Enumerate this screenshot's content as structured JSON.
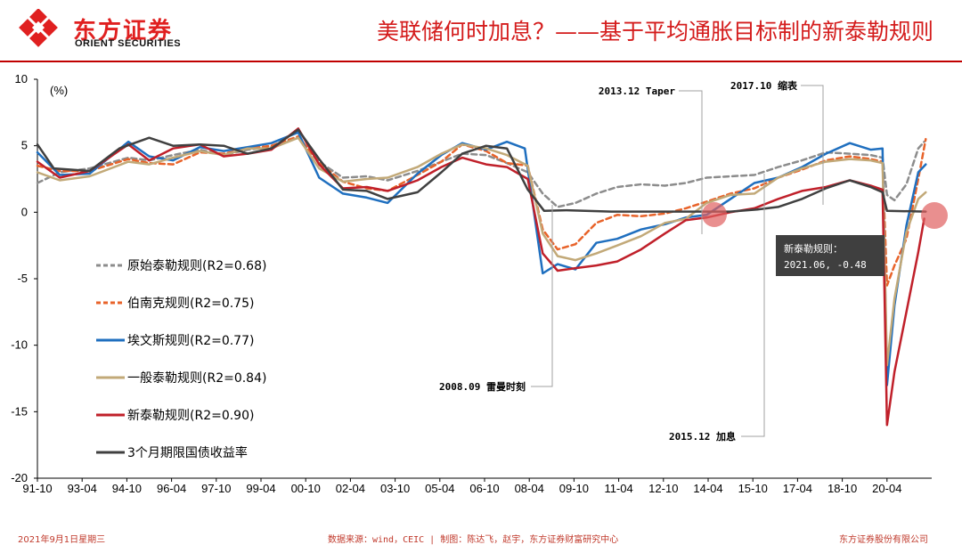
{
  "header": {
    "logo_cn": "东方证券",
    "logo_en": "ORIENT SECURITIES",
    "title": "美联储何时加息？——基于平均通胀目标制的新泰勒规则"
  },
  "footer": {
    "date": "2021年9月1日星期三",
    "source": "数据来源：wind，CEIC | 制图：陈达飞，赵宇，东方证券财富研究中心",
    "company": "东方证券股份有限公司"
  },
  "chart_data": {
    "type": "line",
    "unit_label": "(%)",
    "x_ticks": [
      "91-10",
      "93-04",
      "94-10",
      "96-04",
      "97-10",
      "99-04",
      "00-10",
      "02-04",
      "03-10",
      "05-04",
      "06-10",
      "08-04",
      "09-10",
      "11-04",
      "12-10",
      "14-04",
      "15-10",
      "17-04",
      "18-10",
      "20-04"
    ],
    "x_range": [
      1991.75,
      2021.75
    ],
    "ylim": [
      -20,
      10
    ],
    "y_ticks": [
      10,
      5,
      0,
      -5,
      -10,
      -15,
      -20
    ],
    "series": [
      {
        "name": "原始泰勒规则(R2=0.68)",
        "color": "#8c8c8c",
        "dash": "6,4",
        "width": 2.5,
        "points": [
          [
            1991.75,
            2.2
          ],
          [
            1992.5,
            3.0
          ],
          [
            1993.5,
            3.3
          ],
          [
            1994.8,
            4.1
          ],
          [
            1995.5,
            3.9
          ],
          [
            1996.3,
            4.3
          ],
          [
            1997.2,
            4.7
          ],
          [
            1998.0,
            4.3
          ],
          [
            1998.8,
            4.7
          ],
          [
            1999.6,
            4.9
          ],
          [
            2000.5,
            5.6
          ],
          [
            2001.2,
            3.8
          ],
          [
            2002.0,
            2.6
          ],
          [
            2002.8,
            2.7
          ],
          [
            2003.5,
            2.4
          ],
          [
            2004.5,
            3.1
          ],
          [
            2005.3,
            3.8
          ],
          [
            2006.0,
            4.4
          ],
          [
            2006.8,
            4.3
          ],
          [
            2007.5,
            3.7
          ],
          [
            2008.2,
            3.0
          ],
          [
            2008.7,
            1.4
          ],
          [
            2009.2,
            0.4
          ],
          [
            2009.8,
            0.7
          ],
          [
            2010.5,
            1.4
          ],
          [
            2011.2,
            1.9
          ],
          [
            2012.0,
            2.1
          ],
          [
            2012.8,
            2.0
          ],
          [
            2013.5,
            2.2
          ],
          [
            2014.2,
            2.6
          ],
          [
            2015.0,
            2.7
          ],
          [
            2015.8,
            2.8
          ],
          [
            2016.6,
            3.4
          ],
          [
            2017.4,
            3.9
          ],
          [
            2018.2,
            4.5
          ],
          [
            2019.0,
            4.4
          ],
          [
            2019.7,
            4.3
          ],
          [
            2020.1,
            4.1
          ],
          [
            2020.25,
            1.3
          ],
          [
            2020.5,
            0.9
          ],
          [
            2020.9,
            2.1
          ],
          [
            2021.3,
            4.8
          ],
          [
            2021.5,
            5.3
          ]
        ]
      },
      {
        "name": "伯南克规则(R2=0.75)",
        "color": "#e8632a",
        "dash": "6,4",
        "width": 2.5,
        "points": [
          [
            1991.75,
            3.5
          ],
          [
            1992.5,
            3.1
          ],
          [
            1993.5,
            3.1
          ],
          [
            1994.8,
            4.0
          ],
          [
            1995.5,
            3.7
          ],
          [
            1996.3,
            3.6
          ],
          [
            1997.2,
            4.5
          ],
          [
            1998.0,
            4.4
          ],
          [
            1998.8,
            4.8
          ],
          [
            1999.6,
            5.0
          ],
          [
            2000.5,
            5.7
          ],
          [
            2001.2,
            3.7
          ],
          [
            2002.0,
            2.3
          ],
          [
            2002.8,
            1.8
          ],
          [
            2003.5,
            1.6
          ],
          [
            2004.5,
            2.8
          ],
          [
            2005.3,
            3.8
          ],
          [
            2006.0,
            5.1
          ],
          [
            2006.8,
            4.6
          ],
          [
            2007.5,
            3.7
          ],
          [
            2008.2,
            3.5
          ],
          [
            2008.7,
            -1.3
          ],
          [
            2009.2,
            -2.8
          ],
          [
            2009.8,
            -2.4
          ],
          [
            2010.5,
            -0.8
          ],
          [
            2011.2,
            -0.2
          ],
          [
            2012.0,
            -0.3
          ],
          [
            2012.8,
            -0.1
          ],
          [
            2013.5,
            0.3
          ],
          [
            2014.2,
            0.8
          ],
          [
            2015.0,
            1.4
          ],
          [
            2015.8,
            1.8
          ],
          [
            2016.6,
            2.6
          ],
          [
            2017.4,
            3.2
          ],
          [
            2018.2,
            3.9
          ],
          [
            2019.0,
            4.2
          ],
          [
            2019.7,
            4.0
          ],
          [
            2020.1,
            3.8
          ],
          [
            2020.25,
            -5.5
          ],
          [
            2020.5,
            -4.0
          ],
          [
            2020.9,
            -2.0
          ],
          [
            2021.3,
            2.5
          ],
          [
            2021.55,
            5.5
          ]
        ]
      },
      {
        "name": "埃文斯规则(R2=0.77)",
        "color": "#1f6fbf",
        "dash": "",
        "width": 2.5,
        "points": [
          [
            1991.75,
            4.5
          ],
          [
            1992.5,
            2.8
          ],
          [
            1993.5,
            2.9
          ],
          [
            1994.8,
            5.3
          ],
          [
            1995.5,
            4.2
          ],
          [
            1996.3,
            3.9
          ],
          [
            1997.2,
            4.9
          ],
          [
            1998.0,
            4.6
          ],
          [
            1998.8,
            4.9
          ],
          [
            1999.6,
            5.2
          ],
          [
            2000.5,
            6.0
          ],
          [
            2001.2,
            2.6
          ],
          [
            2002.0,
            1.4
          ],
          [
            2002.8,
            1.1
          ],
          [
            2003.5,
            0.7
          ],
          [
            2004.5,
            2.9
          ],
          [
            2005.3,
            4.3
          ],
          [
            2006.0,
            5.2
          ],
          [
            2006.8,
            4.7
          ],
          [
            2007.5,
            5.3
          ],
          [
            2008.1,
            4.8
          ],
          [
            2008.7,
            -4.6
          ],
          [
            2009.2,
            -3.9
          ],
          [
            2009.8,
            -4.3
          ],
          [
            2010.5,
            -2.3
          ],
          [
            2011.2,
            -2.0
          ],
          [
            2012.0,
            -1.3
          ],
          [
            2012.8,
            -0.9
          ],
          [
            2013.5,
            -0.4
          ],
          [
            2014.2,
            -0.2
          ],
          [
            2015.0,
            1.0
          ],
          [
            2015.8,
            2.2
          ],
          [
            2016.6,
            2.6
          ],
          [
            2017.4,
            3.4
          ],
          [
            2018.2,
            4.4
          ],
          [
            2019.0,
            5.2
          ],
          [
            2019.7,
            4.7
          ],
          [
            2020.1,
            4.8
          ],
          [
            2020.25,
            -13.0
          ],
          [
            2020.5,
            -7.0
          ],
          [
            2020.9,
            -1.0
          ],
          [
            2021.3,
            3.0
          ],
          [
            2021.55,
            3.6
          ]
        ]
      },
      {
        "name": "一般泰勒规则(R2=0.84)",
        "color": "#c2a978",
        "dash": "",
        "width": 2.5,
        "points": [
          [
            1991.75,
            3.0
          ],
          [
            1992.5,
            2.4
          ],
          [
            1993.5,
            2.7
          ],
          [
            1994.8,
            3.8
          ],
          [
            1995.5,
            3.6
          ],
          [
            1996.3,
            4.1
          ],
          [
            1997.2,
            4.6
          ],
          [
            1998.0,
            4.3
          ],
          [
            1998.8,
            4.8
          ],
          [
            1999.6,
            4.8
          ],
          [
            2000.5,
            5.6
          ],
          [
            2001.2,
            3.3
          ],
          [
            2002.0,
            2.3
          ],
          [
            2002.8,
            2.5
          ],
          [
            2003.5,
            2.6
          ],
          [
            2004.5,
            3.4
          ],
          [
            2005.3,
            4.4
          ],
          [
            2006.0,
            5.1
          ],
          [
            2006.8,
            4.8
          ],
          [
            2007.5,
            4.3
          ],
          [
            2008.2,
            3.5
          ],
          [
            2008.7,
            -1.6
          ],
          [
            2009.2,
            -3.3
          ],
          [
            2009.8,
            -3.6
          ],
          [
            2010.5,
            -3.1
          ],
          [
            2011.2,
            -2.5
          ],
          [
            2012.0,
            -1.8
          ],
          [
            2012.8,
            -0.8
          ],
          [
            2013.5,
            -0.5
          ],
          [
            2014.2,
            0.7
          ],
          [
            2015.0,
            1.3
          ],
          [
            2015.8,
            1.4
          ],
          [
            2016.6,
            2.6
          ],
          [
            2017.4,
            3.3
          ],
          [
            2018.2,
            3.8
          ],
          [
            2019.0,
            4.0
          ],
          [
            2019.7,
            3.9
          ],
          [
            2020.1,
            3.7
          ],
          [
            2020.25,
            -11.5
          ],
          [
            2020.5,
            -6.5
          ],
          [
            2020.9,
            -1.5
          ],
          [
            2021.3,
            1.0
          ],
          [
            2021.55,
            1.5
          ]
        ]
      },
      {
        "name": "新泰勒规则(R2=0.90)",
        "color": "#c0202a",
        "dash": "",
        "width": 2.5,
        "points": [
          [
            1991.75,
            3.8
          ],
          [
            1992.5,
            2.6
          ],
          [
            1993.5,
            3.1
          ],
          [
            1994.8,
            5.1
          ],
          [
            1995.5,
            3.9
          ],
          [
            1996.3,
            4.8
          ],
          [
            1997.2,
            5.1
          ],
          [
            1998.0,
            4.2
          ],
          [
            1998.8,
            4.4
          ],
          [
            1999.6,
            4.7
          ],
          [
            2000.5,
            6.3
          ],
          [
            2001.2,
            3.6
          ],
          [
            2002.0,
            1.8
          ],
          [
            2002.8,
            1.9
          ],
          [
            2003.5,
            1.6
          ],
          [
            2004.5,
            2.4
          ],
          [
            2005.3,
            3.4
          ],
          [
            2006.0,
            4.1
          ],
          [
            2006.8,
            3.6
          ],
          [
            2007.5,
            3.4
          ],
          [
            2008.2,
            2.5
          ],
          [
            2008.7,
            -3.1
          ],
          [
            2009.2,
            -4.4
          ],
          [
            2009.8,
            -4.2
          ],
          [
            2010.5,
            -4.0
          ],
          [
            2011.2,
            -3.7
          ],
          [
            2012.0,
            -2.8
          ],
          [
            2012.8,
            -1.6
          ],
          [
            2013.5,
            -0.6
          ],
          [
            2014.2,
            -0.4
          ],
          [
            2015.0,
            0.0
          ],
          [
            2015.8,
            0.3
          ],
          [
            2016.6,
            1.0
          ],
          [
            2017.4,
            1.6
          ],
          [
            2018.2,
            1.9
          ],
          [
            2019.0,
            2.4
          ],
          [
            2019.7,
            2.0
          ],
          [
            2020.1,
            1.7
          ],
          [
            2020.25,
            -16.0
          ],
          [
            2020.5,
            -12.0
          ],
          [
            2020.9,
            -7.5
          ],
          [
            2021.3,
            -3.0
          ],
          [
            2021.5,
            -0.48
          ]
        ]
      },
      {
        "name": "3个月期限国债收益率",
        "color": "#404040",
        "dash": "",
        "width": 2.5,
        "points": [
          [
            1991.75,
            5.1
          ],
          [
            1992.3,
            3.3
          ],
          [
            1993.5,
            3.1
          ],
          [
            1994.5,
            4.8
          ],
          [
            1995.5,
            5.6
          ],
          [
            1996.3,
            5.0
          ],
          [
            1997.2,
            5.1
          ],
          [
            1998.0,
            5.0
          ],
          [
            1998.8,
            4.4
          ],
          [
            1999.6,
            4.8
          ],
          [
            2000.5,
            6.2
          ],
          [
            2001.2,
            4.0
          ],
          [
            2002.0,
            1.7
          ],
          [
            2002.8,
            1.6
          ],
          [
            2003.5,
            1.0
          ],
          [
            2004.5,
            1.5
          ],
          [
            2005.3,
            3.0
          ],
          [
            2006.0,
            4.4
          ],
          [
            2006.8,
            5.0
          ],
          [
            2007.5,
            4.8
          ],
          [
            2008.2,
            1.7
          ],
          [
            2008.75,
            0.1
          ],
          [
            2009.5,
            0.15
          ],
          [
            2011.0,
            0.05
          ],
          [
            2013.0,
            0.05
          ],
          [
            2015.0,
            0.05
          ],
          [
            2015.9,
            0.2
          ],
          [
            2016.6,
            0.4
          ],
          [
            2017.4,
            1.0
          ],
          [
            2018.2,
            1.8
          ],
          [
            2019.0,
            2.4
          ],
          [
            2019.7,
            1.9
          ],
          [
            2020.1,
            1.5
          ],
          [
            2020.25,
            0.1
          ],
          [
            2021.55,
            0.05
          ]
        ]
      }
    ],
    "annotations": [
      {
        "label": "2013.12 Taper",
        "x": 2013.92
      },
      {
        "label": "2017.10 缩表",
        "x": 2017.75
      },
      {
        "label": "2008.09 雷曼时刻",
        "x": 2008.67
      },
      {
        "label": "2015.12 加息",
        "x": 2015.92
      }
    ],
    "callout": {
      "line1": "新泰勒规则：",
      "line2": "2021.06, -0.48"
    }
  }
}
